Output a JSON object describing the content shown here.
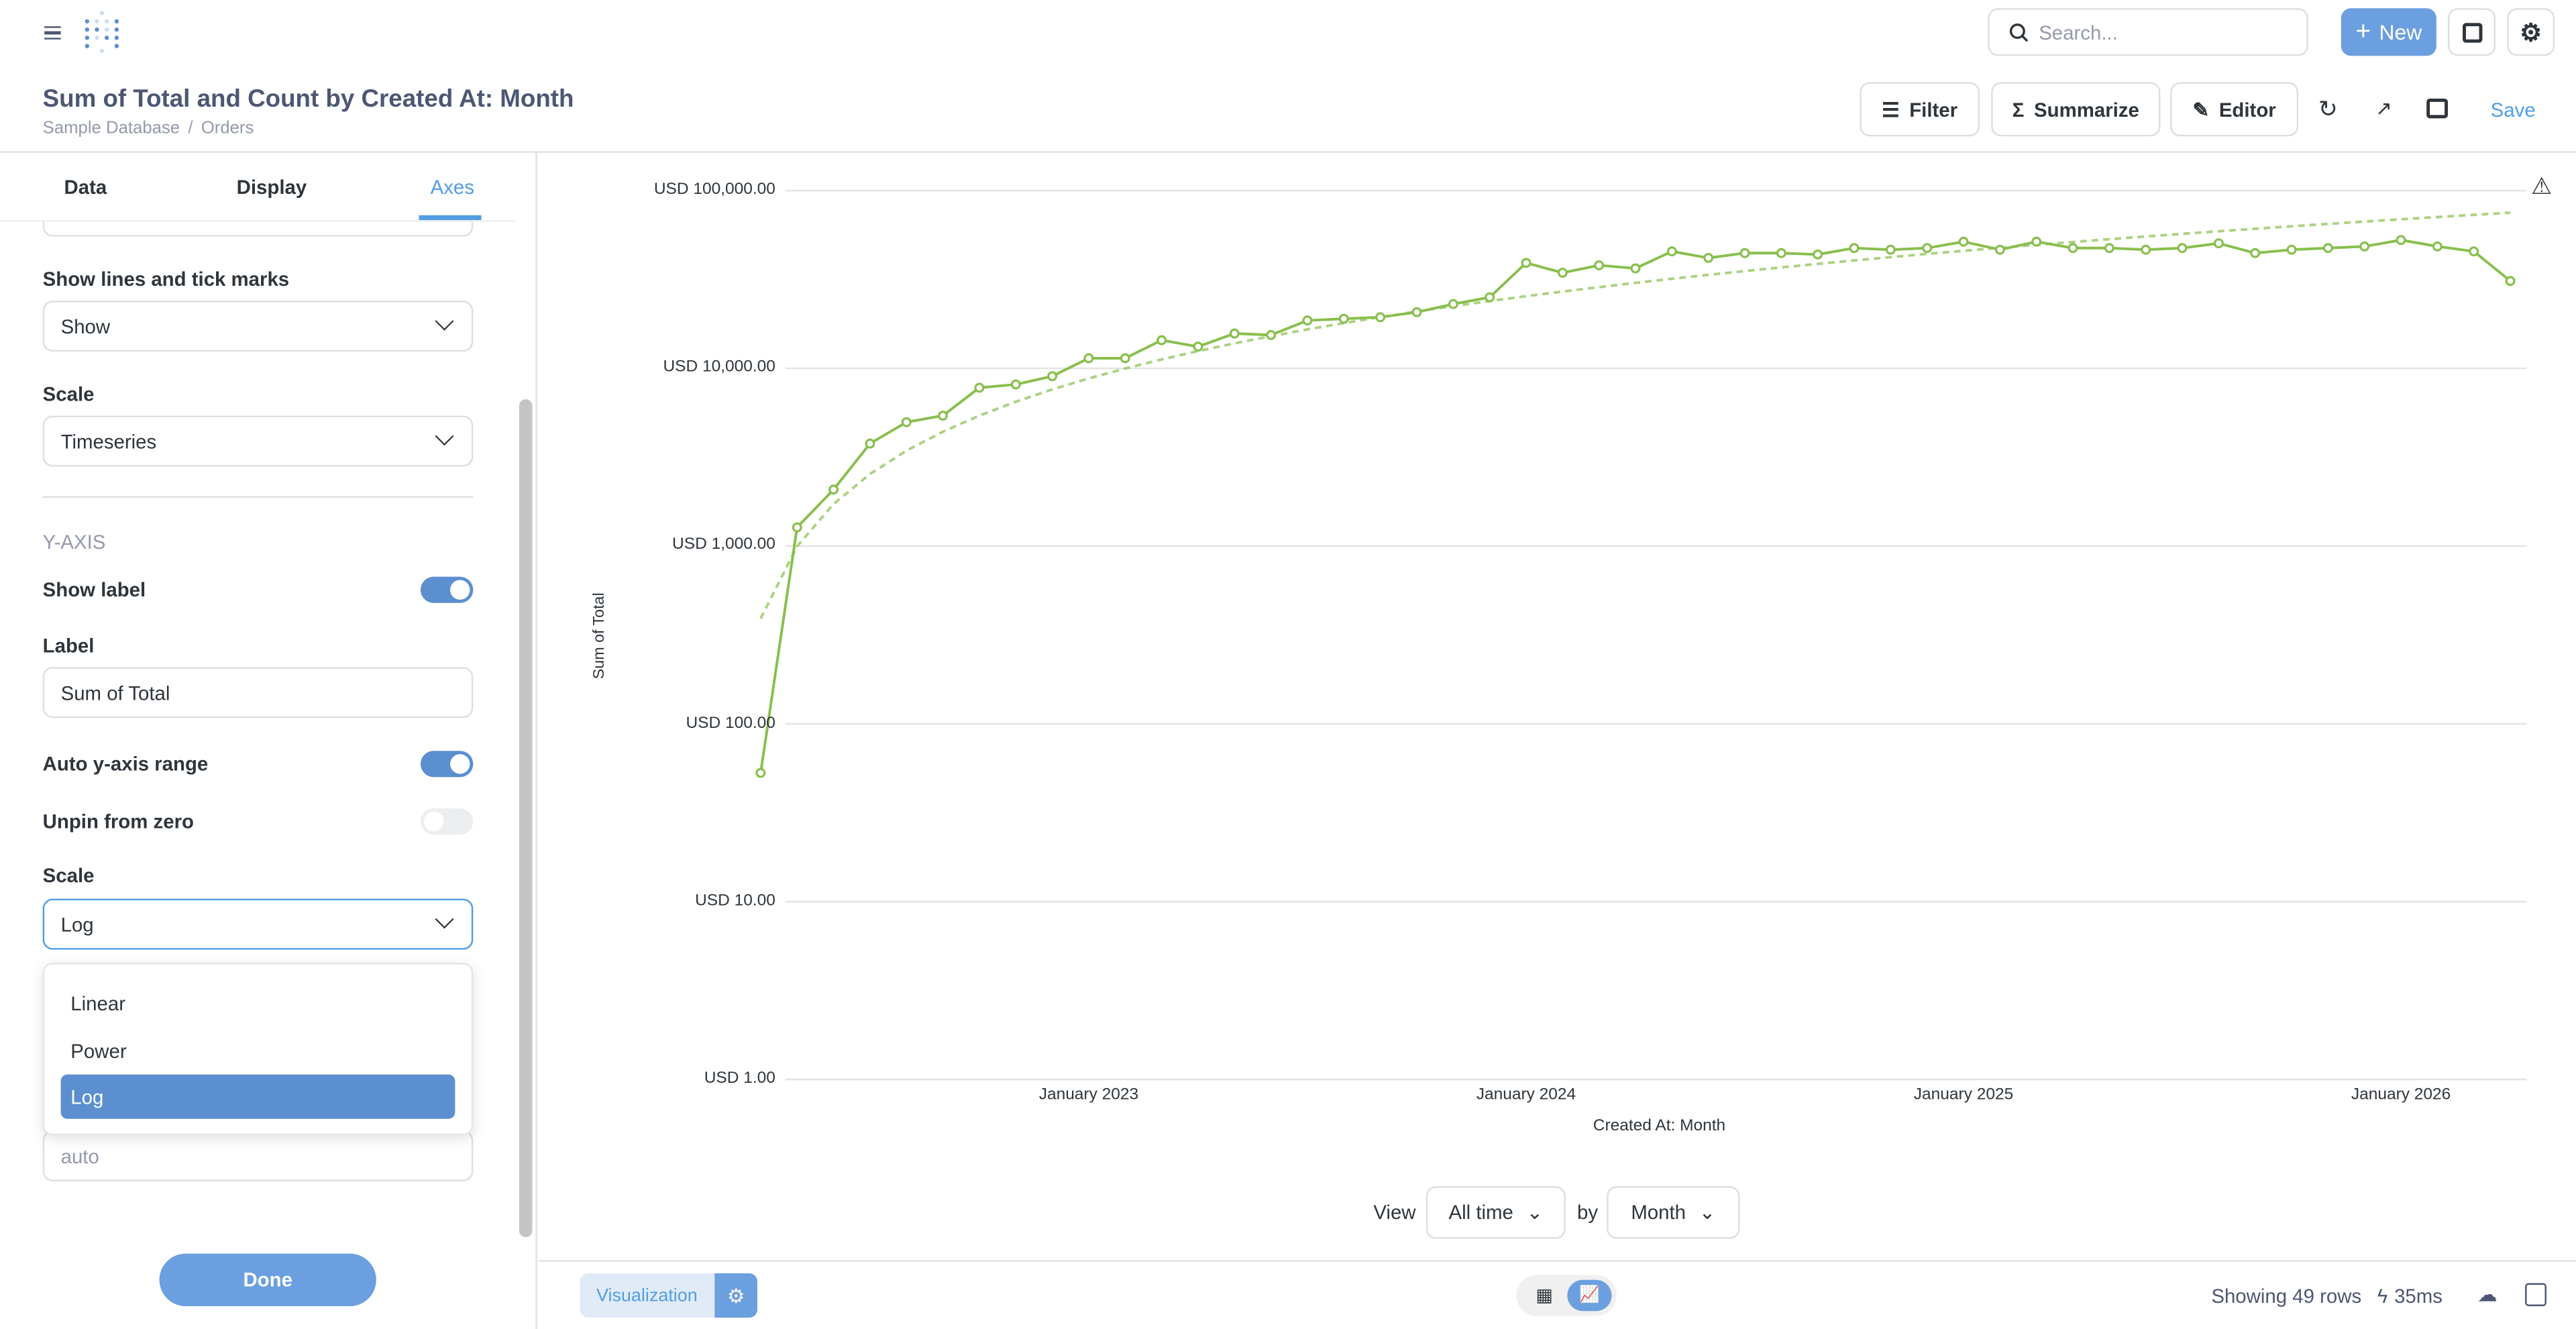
{
  "topbar": {
    "search_placeholder": "Search...",
    "new_label": "New"
  },
  "header": {
    "title": "Sum of Total and Count by Created At: Month",
    "breadcrumb": [
      "Sample Database",
      "Orders"
    ],
    "breadcrumb_sep": "/",
    "filter": "Filter",
    "summarize": "Summarize",
    "editor": "Editor",
    "save": "Save"
  },
  "sidebar": {
    "tabs": [
      "Data",
      "Display",
      "Axes"
    ],
    "active_tab": "Axes",
    "show_lines_label": "Show lines and tick marks",
    "show_lines_value": "Show",
    "x_scale_label": "Scale",
    "x_scale_value": "Timeseries",
    "y_axis_heading": "Y-AXIS",
    "show_label": "Show label",
    "show_label_on": true,
    "label_label": "Label",
    "label_value": "Sum of Total",
    "auto_range": "Auto y-axis range",
    "auto_range_on": true,
    "unpin": "Unpin from zero",
    "unpin_on": false,
    "y_scale_label": "Scale",
    "y_scale_value": "Log",
    "scale_options": [
      "Linear",
      "Power",
      "Log"
    ],
    "min_placeholder": "auto",
    "done": "Done"
  },
  "footer": {
    "view": "View",
    "period": "All time",
    "by": "by",
    "unit": "Month",
    "visualization": "Visualization",
    "rows": "Showing 49 rows",
    "time": "35ms"
  },
  "colors": {
    "accent": "#509ee3",
    "brand": "#5b8fd0",
    "series": "#88bf4d"
  },
  "chart_data": {
    "type": "line",
    "title": "",
    "xlabel": "Created At: Month",
    "ylabel": "Sum of Total",
    "y_scale": "log",
    "ylim": [
      1,
      100000
    ],
    "y_ticks": [
      "USD 100,000.00",
      "USD 10,000.00",
      "USD 1,000.00",
      "USD 100.00",
      "USD 10.00",
      "USD 1.00"
    ],
    "x_ticks": [
      "January 2023",
      "January 2024",
      "January 2025",
      "January 2026"
    ],
    "x_range": [
      "2022-04",
      "2026-04"
    ],
    "grid": true,
    "trend_line": true,
    "x": [
      "2022-04",
      "2022-05",
      "2022-06",
      "2022-07",
      "2022-08",
      "2022-09",
      "2022-10",
      "2022-11",
      "2022-12",
      "2023-01",
      "2023-02",
      "2023-03",
      "2023-04",
      "2023-05",
      "2023-06",
      "2023-07",
      "2023-08",
      "2023-09",
      "2023-10",
      "2023-11",
      "2023-12",
      "2024-01",
      "2024-02",
      "2024-03",
      "2024-04",
      "2024-05",
      "2024-06",
      "2024-07",
      "2024-08",
      "2024-09",
      "2024-10",
      "2024-11",
      "2024-12",
      "2025-01",
      "2025-02",
      "2025-03",
      "2025-04",
      "2025-05",
      "2025-06",
      "2025-07",
      "2025-08",
      "2025-09",
      "2025-10",
      "2025-11",
      "2025-12",
      "2026-01",
      "2026-02",
      "2026-03",
      "2026-04"
    ],
    "values": [
      53,
      1275,
      2080,
      3775,
      4980,
      5420,
      7780,
      8120,
      9030,
      11400,
      11400,
      14400,
      13250,
      15700,
      15400,
      18600,
      19000,
      19400,
      20700,
      23000,
      25100,
      39200,
      34500,
      38000,
      36500,
      45500,
      41800,
      44500,
      44500,
      43700,
      47500,
      46500,
      47500,
      51600,
      46500,
      51600,
      47500,
      47500,
      46500,
      47500,
      50500,
      44500,
      46500,
      47500,
      48500,
      52700,
      48500,
      45500,
      31000
    ]
  }
}
